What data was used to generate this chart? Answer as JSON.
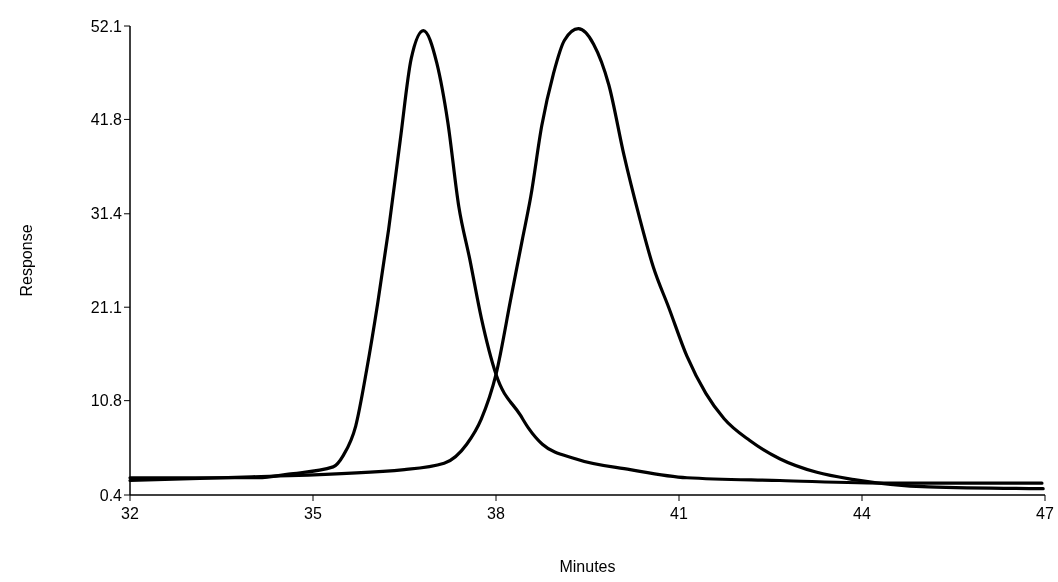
{
  "chart_data": {
    "type": "line",
    "xlabel": "Minutes",
    "ylabel": "Response",
    "xlim": [
      32,
      47
    ],
    "ylim": [
      0.4,
      52.1
    ],
    "xticks": [
      32,
      35,
      38,
      41,
      44,
      47
    ],
    "yticks": [
      0.4,
      10.8,
      21.1,
      31.4,
      41.8,
      52.1
    ],
    "marker": "none",
    "line_style": "solid",
    "series": [
      {
        "color": "#000000",
        "x": [
          32,
          34.1,
          34.6,
          35.33,
          35.5,
          35.7,
          35.88,
          36.06,
          36.24,
          36.43,
          36.61,
          36.81,
          37.03,
          37.21,
          37.39,
          37.57,
          37.76,
          38.0,
          38.4,
          38.53,
          38.76,
          39.3,
          40.2,
          41.13,
          42.65,
          44.46,
          46.95
        ],
        "values": [
          2.3,
          2.3,
          2.7,
          3.5,
          4.8,
          8.0,
          14.2,
          21.5,
          29.7,
          39.5,
          48.5,
          51.6,
          48.0,
          41.5,
          32.2,
          26.4,
          19.9,
          13.7,
          9.2,
          7.8,
          6.0,
          4.4,
          3.2,
          2.3,
          2.0,
          1.7,
          1.7
        ]
      },
      {
        "color": "#000000",
        "x": [
          32,
          34,
          36.5,
          37.15,
          37.52,
          37.76,
          38.0,
          38.25,
          38.43,
          38.57,
          38.75,
          38.94,
          39.12,
          39.35,
          39.6,
          39.85,
          40.1,
          40.34,
          40.58,
          40.83,
          41.13,
          41.44,
          41.74,
          42.16,
          42.65,
          43.26,
          43.87,
          45.09,
          46.97
        ],
        "values": [
          2.0,
          2.4,
          3.2,
          3.9,
          6.0,
          8.8,
          13.7,
          22.3,
          28.5,
          33.3,
          41.1,
          46.8,
          50.5,
          51.8,
          50.1,
          45.6,
          37.8,
          31.3,
          25.5,
          21.1,
          15.7,
          11.6,
          8.8,
          6.4,
          4.4,
          2.9,
          2.1,
          1.3,
          1.1
        ]
      }
    ]
  }
}
